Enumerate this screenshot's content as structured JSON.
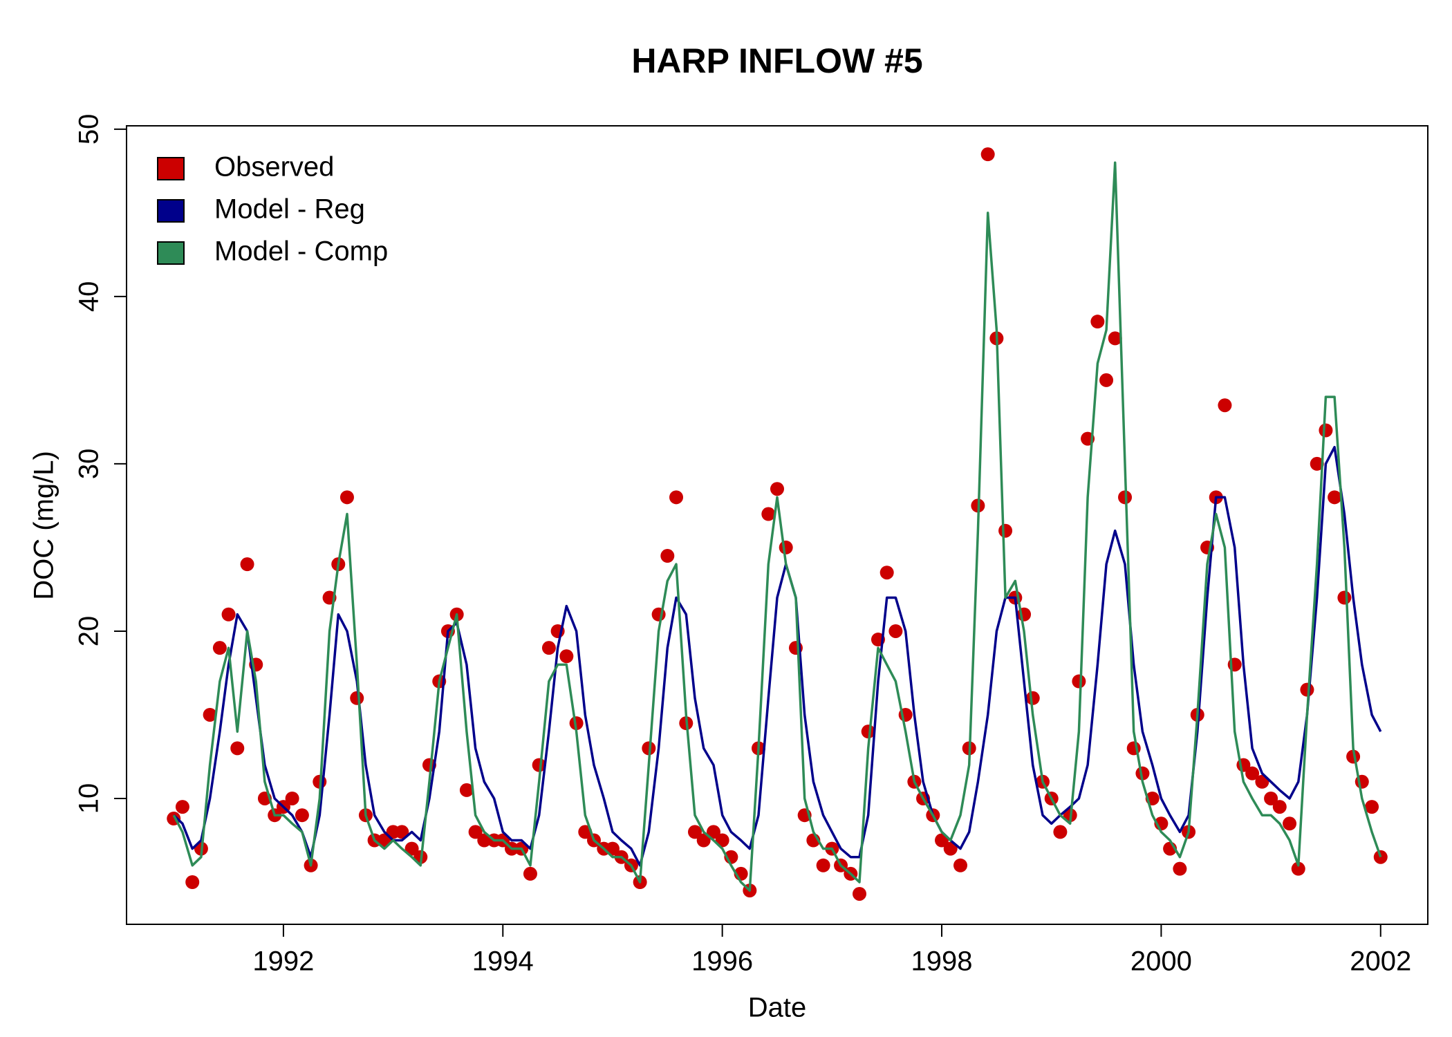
{
  "chart_data": {
    "type": "line",
    "title": "HARP INFLOW #5",
    "x_label": "Date",
    "y_label": "DOC (mg/L)",
    "xlim": [
      1990.57,
      2002.43
    ],
    "xticks": [
      1992,
      1994,
      1996,
      1998,
      2000,
      2002
    ],
    "ylim": [
      2.48,
      50.2
    ],
    "yticks": [
      10,
      20,
      30,
      40,
      50
    ],
    "grid": false,
    "legend": "topleft",
    "x": [
      1991.0,
      1991.08,
      1991.17,
      1991.25,
      1991.33,
      1991.42,
      1991.5,
      1991.58,
      1991.67,
      1991.75,
      1991.83,
      1991.92,
      1992.0,
      1992.08,
      1992.17,
      1992.25,
      1992.33,
      1992.42,
      1992.5,
      1992.58,
      1992.67,
      1992.75,
      1992.83,
      1992.92,
      1993.0,
      1993.08,
      1993.17,
      1993.25,
      1993.33,
      1993.42,
      1993.5,
      1993.58,
      1993.67,
      1993.75,
      1993.83,
      1993.92,
      1994.0,
      1994.08,
      1994.17,
      1994.25,
      1994.33,
      1994.42,
      1994.5,
      1994.58,
      1994.67,
      1994.75,
      1994.83,
      1994.92,
      1995.0,
      1995.08,
      1995.17,
      1995.25,
      1995.33,
      1995.42,
      1995.5,
      1995.58,
      1995.67,
      1995.75,
      1995.83,
      1995.92,
      1996.0,
      1996.08,
      1996.17,
      1996.25,
      1996.33,
      1996.42,
      1996.5,
      1996.58,
      1996.67,
      1996.75,
      1996.83,
      1996.92,
      1997.0,
      1997.08,
      1997.17,
      1997.25,
      1997.33,
      1997.42,
      1997.5,
      1997.58,
      1997.67,
      1997.75,
      1997.83,
      1997.92,
      1998.0,
      1998.08,
      1998.17,
      1998.25,
      1998.33,
      1998.42,
      1998.5,
      1998.58,
      1998.67,
      1998.75,
      1998.83,
      1998.92,
      1999.0,
      1999.08,
      1999.17,
      1999.25,
      1999.33,
      1999.42,
      1999.5,
      1999.58,
      1999.67,
      1999.75,
      1999.83,
      1999.92,
      2000.0,
      2000.08,
      2000.17,
      2000.25,
      2000.33,
      2000.42,
      2000.5,
      2000.58,
      2000.67,
      2000.75,
      2000.83,
      2000.92,
      2001.0,
      2001.08,
      2001.17,
      2001.25,
      2001.33,
      2001.42,
      2001.5,
      2001.58,
      2001.67,
      2001.75,
      2001.83,
      2001.92,
      2002.0
    ],
    "series": [
      {
        "name": "Observed",
        "color": "#cc0000",
        "mode": "markers",
        "values": [
          8.8,
          9.5,
          5,
          7,
          15,
          19,
          21,
          13,
          24,
          18,
          10,
          9,
          9.5,
          10,
          9,
          6,
          11,
          22,
          24,
          28,
          16,
          9,
          7.5,
          7.5,
          8,
          8,
          7,
          6.5,
          12,
          17,
          20,
          21,
          10.5,
          8,
          7.5,
          7.5,
          7.5,
          7,
          7,
          5.5,
          12,
          19,
          20,
          18.5,
          14.5,
          8,
          7.5,
          7,
          7,
          6.5,
          6,
          5,
          13,
          21,
          24.5,
          28,
          14.5,
          8,
          7.5,
          8,
          7.5,
          6.5,
          5.5,
          4.5,
          13,
          27,
          28.5,
          25,
          19,
          9,
          7.5,
          6,
          7,
          6,
          5.5,
          4.3,
          14,
          19.5,
          23.5,
          20,
          15,
          11,
          10,
          9,
          7.5,
          7,
          6,
          13,
          27.5,
          48.5,
          37.5,
          26,
          22,
          21,
          16,
          11,
          10,
          8,
          9,
          17,
          31.5,
          38.5,
          35,
          37.5,
          28,
          13,
          11.5,
          10,
          8.5,
          7,
          5.8,
          8,
          15,
          25,
          28,
          33.5,
          18,
          12,
          11.5,
          11,
          10,
          9.5,
          8.5,
          5.8,
          16.5,
          30,
          32,
          28,
          22,
          12.5,
          11,
          9.5,
          6.5
        ]
      },
      {
        "name": "Model - Reg",
        "color": "#00008b",
        "mode": "lines",
        "values": [
          9,
          8.5,
          7,
          7.5,
          10,
          14,
          18,
          21,
          20,
          16,
          12,
          10,
          9.5,
          9,
          8,
          6.5,
          9,
          15,
          21,
          20,
          17,
          12,
          9,
          8,
          7.5,
          7.5,
          8,
          7.5,
          10,
          14,
          20,
          20.5,
          18,
          13,
          11,
          10,
          8,
          7.5,
          7.5,
          7,
          9,
          14,
          19,
          21.5,
          20,
          15,
          12,
          10,
          8,
          7.5,
          7,
          6,
          8,
          13,
          19,
          22,
          21,
          16,
          13,
          12,
          9,
          8,
          7.5,
          7,
          9,
          16,
          22,
          24,
          22,
          15,
          11,
          9,
          8,
          7,
          6.5,
          6.5,
          9,
          17,
          22,
          22,
          20,
          15,
          11,
          9,
          8,
          7.5,
          7,
          8,
          11,
          15,
          20,
          22,
          22,
          17,
          12,
          9,
          8.5,
          9,
          9.5,
          10,
          12,
          18,
          24,
          26,
          24,
          18,
          14,
          12,
          10,
          9,
          8,
          9,
          14,
          22,
          28,
          28,
          25,
          18,
          13,
          11.5,
          11,
          10.5,
          10,
          11,
          15,
          22,
          30,
          31,
          27,
          22,
          18,
          15,
          14
        ]
      },
      {
        "name": "Model - Comp",
        "color": "#2e8b57",
        "mode": "lines",
        "values": [
          9,
          8,
          6,
          6.5,
          12,
          17,
          19,
          14,
          20,
          17,
          11,
          9,
          9,
          8.5,
          8,
          6,
          10,
          20,
          24,
          27,
          18,
          9,
          7.5,
          7,
          7.5,
          7,
          6.5,
          6,
          11,
          17,
          19,
          21,
          14,
          9,
          8,
          7.5,
          7.5,
          7,
          7,
          6,
          11,
          17,
          18,
          18,
          14,
          9,
          7.5,
          7,
          6.5,
          6.5,
          6,
          5,
          12,
          20,
          23,
          24,
          15,
          9,
          8,
          7.5,
          7,
          6,
          5,
          4.5,
          13,
          24,
          28,
          24,
          22,
          10,
          8,
          7,
          7,
          6,
          5.5,
          5,
          13,
          19,
          18,
          17,
          14,
          11,
          10,
          9,
          8,
          7.5,
          9,
          12,
          26,
          45,
          38,
          22,
          23,
          20,
          15,
          11,
          10,
          9,
          8.5,
          14,
          28,
          36,
          38,
          48,
          30,
          14,
          11,
          9,
          8,
          7.5,
          6.5,
          8,
          15,
          24,
          27,
          25,
          14,
          11,
          10,
          9,
          9,
          8.5,
          7.5,
          6,
          15,
          24,
          34,
          34,
          25,
          13,
          10,
          8,
          6.5
        ]
      }
    ]
  }
}
